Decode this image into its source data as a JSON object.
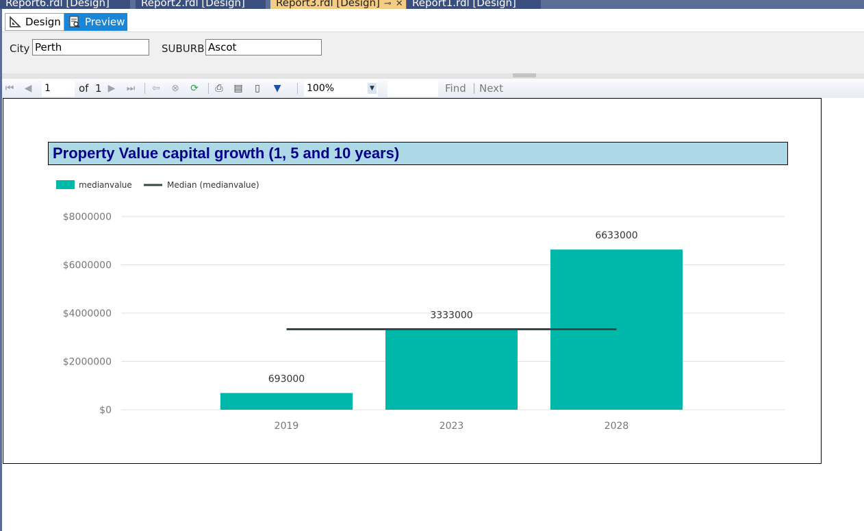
{
  "doc_tabs": [
    {
      "label": "Report6.rdl [Design]",
      "active": false
    },
    {
      "label": "Report2.rdl [Design]",
      "active": false
    },
    {
      "label": "Report3.rdl [Design]",
      "active": true
    },
    {
      "label": "Report1.rdl [Design]",
      "active": false
    }
  ],
  "mode_tabs": {
    "design": "Design",
    "preview": "Preview"
  },
  "parameters": {
    "city_label": "City",
    "city_value": "Perth",
    "suburb_label": "SUBURB",
    "suburb_value": "Ascot"
  },
  "toolbar": {
    "page_current": "1",
    "page_of": "of",
    "page_total": "1",
    "zoom": "100%",
    "find_label": "Find",
    "next_label": "Next",
    "search_value": ""
  },
  "colors": {
    "bar": "#00b8aa",
    "median_line": "#374649",
    "title_bg": "#add8e6",
    "title_text": "#00008b"
  },
  "chart_data": {
    "type": "bar",
    "title": "Property Value capital growth (1, 5 and 10 years)",
    "categories": [
      "2019",
      "2023",
      "2028"
    ],
    "series": [
      {
        "name": "medianvalue",
        "type": "bar",
        "values": [
          693000,
          3333000,
          6633000
        ]
      },
      {
        "name": "Median (medianvalue)",
        "type": "line",
        "value": 3333000
      }
    ],
    "data_labels": [
      "693000",
      "3333000",
      "6633000"
    ],
    "y_ticks": [
      0,
      2000000,
      4000000,
      6000000,
      8000000
    ],
    "y_tick_labels": [
      "$0",
      "$2000000",
      "$4000000",
      "$6000000",
      "$8000000"
    ],
    "ylim": [
      0,
      8000000
    ],
    "legend": "top-left",
    "grid": true
  }
}
